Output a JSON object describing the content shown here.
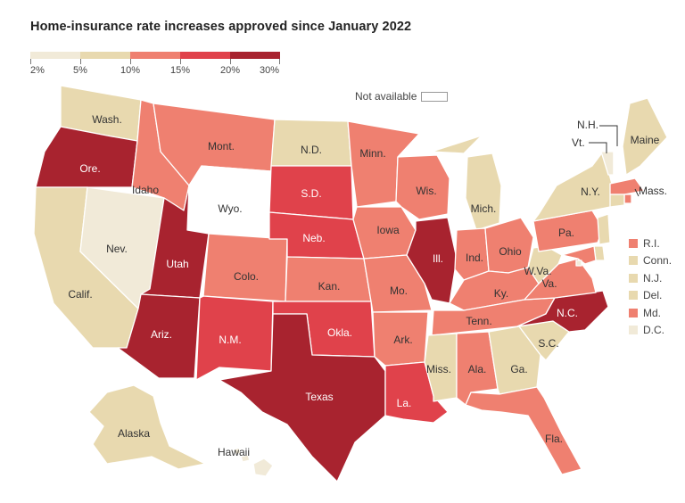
{
  "title": "Home-insurance rate increases approved since January 2022",
  "legend": {
    "labels": [
      "2%",
      "5%",
      "10%",
      "15%",
      "20%",
      "30%"
    ],
    "colors": [
      "#f1ead8",
      "#e8d9af",
      "#ef8070",
      "#e0424b",
      "#a8232f"
    ]
  },
  "not_available": "Not available",
  "colors": {
    "b1": "#f1ead8",
    "b2": "#e8d9af",
    "b3": "#ef8070",
    "b4": "#e0424b",
    "b5": "#a8232f",
    "na": "#ffffff",
    "dark_label": "#ffffff",
    "light_label": "#333333"
  },
  "states": [
    {
      "id": "wa",
      "label": "Wash.",
      "bin": "b2"
    },
    {
      "id": "or",
      "label": "Ore.",
      "bin": "b5"
    },
    {
      "id": "ca",
      "label": "Calif.",
      "bin": "b2"
    },
    {
      "id": "nv",
      "label": "Nev.",
      "bin": "b1"
    },
    {
      "id": "id",
      "label": "Idaho",
      "bin": "b3"
    },
    {
      "id": "mt",
      "label": "Mont.",
      "bin": "b3"
    },
    {
      "id": "wy",
      "label": "Wyo.",
      "bin": "na"
    },
    {
      "id": "ut",
      "label": "Utah",
      "bin": "b5"
    },
    {
      "id": "az",
      "label": "Ariz.",
      "bin": "b5"
    },
    {
      "id": "co",
      "label": "Colo.",
      "bin": "b3"
    },
    {
      "id": "nm",
      "label": "N.M.",
      "bin": "b4"
    },
    {
      "id": "nd",
      "label": "N.D.",
      "bin": "b2"
    },
    {
      "id": "sd",
      "label": "S.D.",
      "bin": "b4"
    },
    {
      "id": "ne",
      "label": "Neb.",
      "bin": "b4"
    },
    {
      "id": "ks",
      "label": "Kan.",
      "bin": "b3"
    },
    {
      "id": "ok",
      "label": "Okla.",
      "bin": "b4"
    },
    {
      "id": "tx",
      "label": "Texas",
      "bin": "b5"
    },
    {
      "id": "mn",
      "label": "Minn.",
      "bin": "b3"
    },
    {
      "id": "ia",
      "label": "Iowa",
      "bin": "b3"
    },
    {
      "id": "mo",
      "label": "Mo.",
      "bin": "b3"
    },
    {
      "id": "ar",
      "label": "Ark.",
      "bin": "b3"
    },
    {
      "id": "la",
      "label": "La.",
      "bin": "b4"
    },
    {
      "id": "wi",
      "label": "Wis.",
      "bin": "b3"
    },
    {
      "id": "il",
      "label": "Ill.",
      "bin": "b5"
    },
    {
      "id": "mi",
      "label": "Mich.",
      "bin": "b2"
    },
    {
      "id": "in",
      "label": "Ind.",
      "bin": "b3"
    },
    {
      "id": "oh",
      "label": "Ohio",
      "bin": "b3"
    },
    {
      "id": "ky",
      "label": "Ky.",
      "bin": "b3"
    },
    {
      "id": "tn",
      "label": "Tenn.",
      "bin": "b3"
    },
    {
      "id": "ms",
      "label": "Miss.",
      "bin": "b2"
    },
    {
      "id": "al",
      "label": "Ala.",
      "bin": "b3"
    },
    {
      "id": "ga",
      "label": "Ga.",
      "bin": "b2"
    },
    {
      "id": "fl",
      "label": "Fla.",
      "bin": "b3"
    },
    {
      "id": "sc",
      "label": "S.C.",
      "bin": "b2"
    },
    {
      "id": "nc",
      "label": "N.C.",
      "bin": "b5"
    },
    {
      "id": "va",
      "label": "Va.",
      "bin": "b3"
    },
    {
      "id": "wv",
      "label": "W.Va.",
      "bin": "b2"
    },
    {
      "id": "pa",
      "label": "Pa.",
      "bin": "b3"
    },
    {
      "id": "ny",
      "label": "N.Y.",
      "bin": "b2"
    },
    {
      "id": "vt",
      "label": "Vt.",
      "bin": "b1"
    },
    {
      "id": "nh",
      "label": "N.H.",
      "bin": "na"
    },
    {
      "id": "me",
      "label": "Maine",
      "bin": "b2"
    },
    {
      "id": "ma",
      "label": "Mass.",
      "bin": "b3"
    },
    {
      "id": "ri",
      "label": "R.I.",
      "bin": "b3"
    },
    {
      "id": "ct",
      "label": "Conn.",
      "bin": "b2"
    },
    {
      "id": "nj",
      "label": "N.J.",
      "bin": "b2"
    },
    {
      "id": "de",
      "label": "Del.",
      "bin": "b2"
    },
    {
      "id": "md",
      "label": "Md.",
      "bin": "b3"
    },
    {
      "id": "dc",
      "label": "D.C.",
      "bin": "b1"
    },
    {
      "id": "ak",
      "label": "Alaska",
      "bin": "b2"
    },
    {
      "id": "hi",
      "label": "Hawaii",
      "bin": "b1"
    }
  ],
  "small_states_legend": [
    {
      "label": "R.I.",
      "bin": "b3"
    },
    {
      "label": "Conn.",
      "bin": "b2"
    },
    {
      "label": "N.J.",
      "bin": "b2"
    },
    {
      "label": "Del.",
      "bin": "b2"
    },
    {
      "label": "Md.",
      "bin": "b3"
    },
    {
      "label": "D.C.",
      "bin": "b1"
    }
  ]
}
